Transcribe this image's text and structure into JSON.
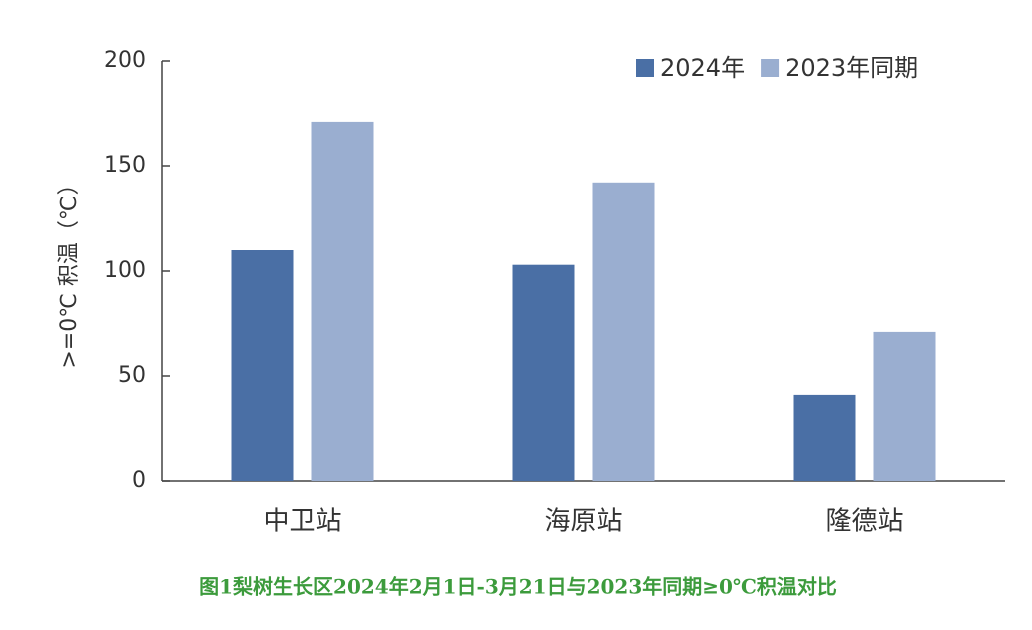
{
  "chart_data": {
    "type": "bar",
    "y_label": ">=0℃ 积温（℃）",
    "caption": "图1梨树生长区2024年2月1日-3月21日与2023年同期≥0℃积温对比",
    "categories": [
      "中卫站",
      "海原站",
      "隆德站"
    ],
    "series": [
      {
        "name": "2024年",
        "color": "#4a6fa5",
        "values": [
          110,
          103,
          41
        ]
      },
      {
        "name": "2023年同期",
        "color": "#9aaed0",
        "values": [
          171,
          142,
          71
        ]
      }
    ],
    "ylim": [
      0,
      200
    ],
    "yticks": [
      0,
      50,
      100,
      150,
      200
    ],
    "legend": "top-right"
  }
}
